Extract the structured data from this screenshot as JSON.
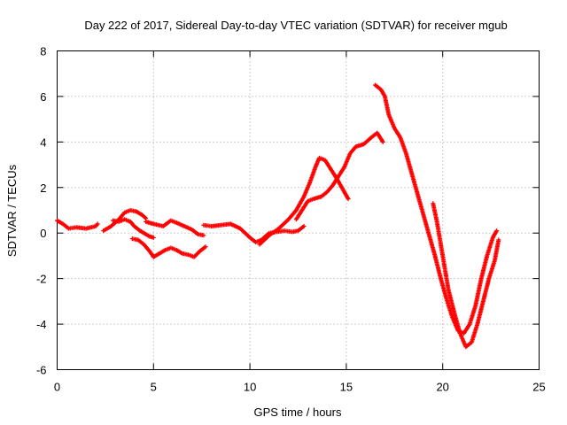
{
  "chart_data": {
    "type": "scatter",
    "title": "Day 222 of 2017, Sidereal Day-to-day VTEC variation (SDTVAR) for receiver mgub",
    "xlabel": "GPS time / hours",
    "ylabel": "SDTVAR / TECUs",
    "xlim": [
      0,
      25
    ],
    "ylim": [
      -6,
      8
    ],
    "xticks": [
      0,
      5,
      10,
      15,
      20,
      25
    ],
    "yticks": [
      -6,
      -4,
      -2,
      0,
      2,
      4,
      6,
      8
    ],
    "grid": true,
    "marker": "+",
    "color": "#ff0000",
    "series": [
      {
        "x": [
          0.0,
          0.3,
          0.6,
          1.0,
          1.5,
          2.0,
          2.1
        ],
        "y": [
          0.55,
          0.4,
          0.2,
          0.25,
          0.2,
          0.3,
          0.4
        ]
      },
      {
        "x": [
          2.4,
          2.8,
          3.2,
          3.5,
          3.8,
          4.1,
          4.4,
          4.6
        ],
        "y": [
          0.1,
          0.3,
          0.6,
          0.9,
          1.0,
          0.95,
          0.8,
          0.65
        ]
      },
      {
        "x": [
          2.9,
          3.2,
          3.5,
          3.8,
          4.0,
          4.3,
          4.6,
          4.8,
          5.0
        ],
        "y": [
          0.55,
          0.5,
          0.6,
          0.5,
          0.3,
          0.1,
          -0.05,
          -0.15,
          -0.2
        ]
      },
      {
        "x": [
          4.6,
          5.0,
          5.5,
          5.9,
          6.2,
          6.6,
          7.0,
          7.3,
          7.6
        ],
        "y": [
          0.5,
          0.4,
          0.3,
          0.55,
          0.45,
          0.3,
          0.15,
          -0.05,
          -0.1
        ]
      },
      {
        "x": [
          3.9,
          4.2,
          4.5,
          4.8,
          5.0,
          5.3,
          5.6,
          5.9,
          6.2,
          6.5,
          6.8,
          7.1,
          7.4,
          7.7
        ],
        "y": [
          -0.25,
          -0.3,
          -0.5,
          -0.8,
          -1.05,
          -0.9,
          -0.75,
          -0.65,
          -0.75,
          -0.9,
          -0.95,
          -1.05,
          -0.8,
          -0.6
        ]
      },
      {
        "x": [
          7.6,
          8.0,
          8.5,
          9.0,
          9.5,
          10.0,
          10.3,
          10.6,
          11.0,
          11.4,
          11.8,
          12.2,
          12.5,
          12.8
        ],
        "y": [
          0.35,
          0.3,
          0.35,
          0.4,
          0.2,
          -0.2,
          -0.4,
          -0.3,
          0.0,
          0.05,
          0.1,
          0.05,
          0.1,
          0.3
        ]
      },
      {
        "x": [
          10.5,
          11.0,
          11.5,
          12.0,
          12.4,
          12.8,
          13.1,
          13.4,
          13.6,
          13.9,
          14.2,
          14.5,
          14.9,
          15.1
        ],
        "y": [
          -0.5,
          -0.1,
          0.2,
          0.6,
          1.0,
          1.6,
          2.2,
          2.9,
          3.3,
          3.2,
          2.8,
          2.4,
          1.8,
          1.5
        ]
      },
      {
        "x": [
          12.4,
          12.7,
          13.0,
          13.3,
          13.7,
          14.0,
          14.3,
          14.6,
          14.9,
          15.2,
          15.5,
          15.9,
          16.3,
          16.6,
          16.9
        ],
        "y": [
          0.6,
          1.0,
          1.4,
          1.5,
          1.6,
          1.8,
          2.1,
          2.5,
          2.9,
          3.5,
          3.8,
          3.9,
          4.2,
          4.4,
          4.0
        ]
      },
      {
        "x": [
          16.5,
          16.8,
          17.0,
          17.2,
          17.5,
          17.8,
          18.1,
          18.4,
          18.7,
          19.0,
          19.3,
          19.6,
          19.9,
          20.2,
          20.5,
          20.8,
          21.1,
          21.4,
          21.7,
          22.0,
          22.3,
          22.6,
          22.8
        ],
        "y": [
          6.5,
          6.3,
          6.0,
          5.2,
          4.6,
          4.2,
          3.5,
          2.6,
          1.7,
          0.8,
          -0.1,
          -1.0,
          -2.0,
          -2.9,
          -3.7,
          -4.3,
          -4.4,
          -4.0,
          -3.2,
          -2.0,
          -1.0,
          -0.2,
          0.1
        ]
      },
      {
        "x": [
          19.5,
          19.7,
          19.9,
          20.1,
          20.3,
          20.6,
          20.9,
          21.2,
          21.5,
          21.8,
          22.1,
          22.4,
          22.7,
          22.9
        ],
        "y": [
          1.3,
          0.5,
          -0.5,
          -1.5,
          -2.5,
          -3.5,
          -4.4,
          -5.0,
          -4.8,
          -4.0,
          -3.0,
          -2.0,
          -1.2,
          -0.3
        ]
      }
    ]
  }
}
